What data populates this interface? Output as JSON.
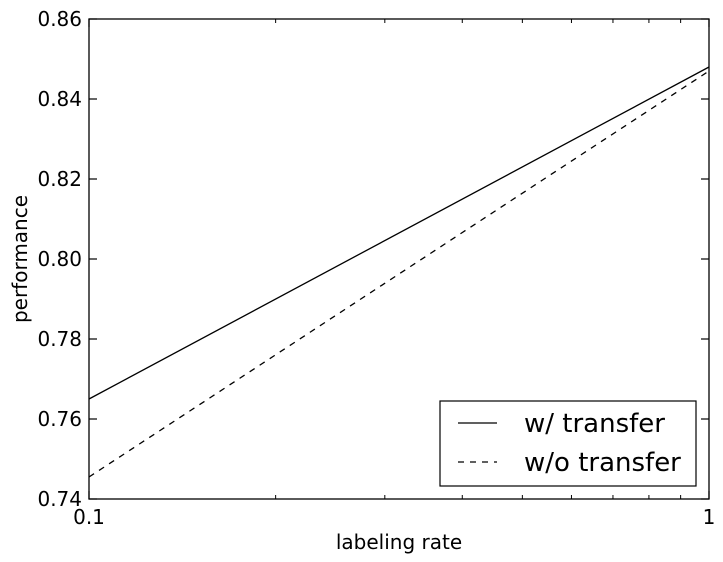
{
  "chart_data": {
    "type": "line",
    "xscale": "log",
    "xlabel": "labeling rate",
    "ylabel": "performance",
    "xlim": [
      0.1,
      1
    ],
    "ylim": [
      0.74,
      0.86
    ],
    "x_ticks": [
      0.1,
      1
    ],
    "x_tick_labels": [
      "0.1",
      "1"
    ],
    "y_ticks": [
      0.74,
      0.76,
      0.78,
      0.8,
      0.82,
      0.84,
      0.86
    ],
    "y_tick_labels": [
      "0.74",
      "0.76",
      "0.78",
      "0.80",
      "0.82",
      "0.84",
      "0.86"
    ],
    "grid": false,
    "legend_position": "lower-right",
    "series": [
      {
        "name": "w/ transfer",
        "line_style": "solid",
        "color": "#000000",
        "x": [
          0.1,
          1
        ],
        "y": [
          0.765,
          0.848
        ]
      },
      {
        "name": "w/o transfer",
        "line_style": "dashed",
        "color": "#000000",
        "x": [
          0.1,
          1
        ],
        "y": [
          0.7455,
          0.847
        ]
      }
    ]
  }
}
